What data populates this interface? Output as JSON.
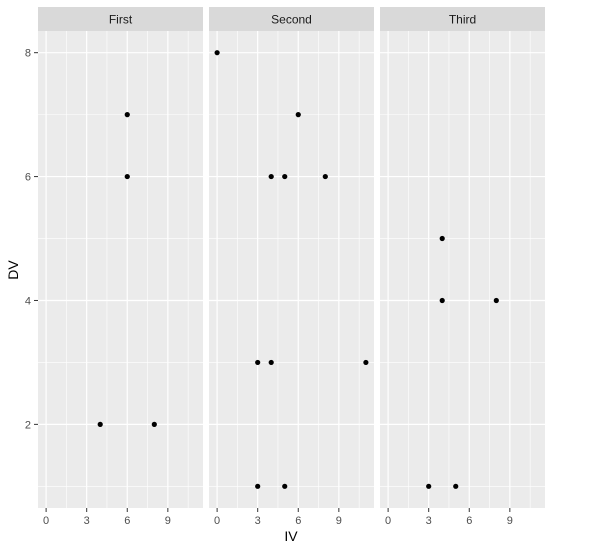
{
  "chart_data": {
    "type": "scatter",
    "layout": "facet-wrap",
    "xlabel": "IV",
    "ylabel": "DV",
    "xlim": [
      -0.6,
      11.6
    ],
    "ylim": [
      0.65,
      8.35
    ],
    "x_ticks": [
      0,
      3,
      6,
      9
    ],
    "y_ticks": [
      2,
      4,
      6,
      8
    ],
    "grid": true,
    "colors": {
      "panel_background": "#ebebeb",
      "strip_background": "#d9d9d9",
      "grid_line": "#ffffff",
      "point": "#000000"
    },
    "panels": [
      {
        "name": "First",
        "points": [
          [
            6,
            7
          ],
          [
            6,
            6
          ],
          [
            4,
            2
          ],
          [
            8,
            2
          ]
        ]
      },
      {
        "name": "Second",
        "points": [
          [
            0,
            8
          ],
          [
            6,
            7
          ],
          [
            4,
            6
          ],
          [
            5,
            6
          ],
          [
            8,
            6
          ],
          [
            3,
            3
          ],
          [
            4,
            3
          ],
          [
            11,
            3
          ],
          [
            3,
            1
          ],
          [
            5,
            1
          ]
        ]
      },
      {
        "name": "Third",
        "points": [
          [
            4,
            5
          ],
          [
            4,
            4
          ],
          [
            8,
            4
          ],
          [
            3,
            1
          ],
          [
            5,
            1
          ]
        ]
      }
    ]
  }
}
